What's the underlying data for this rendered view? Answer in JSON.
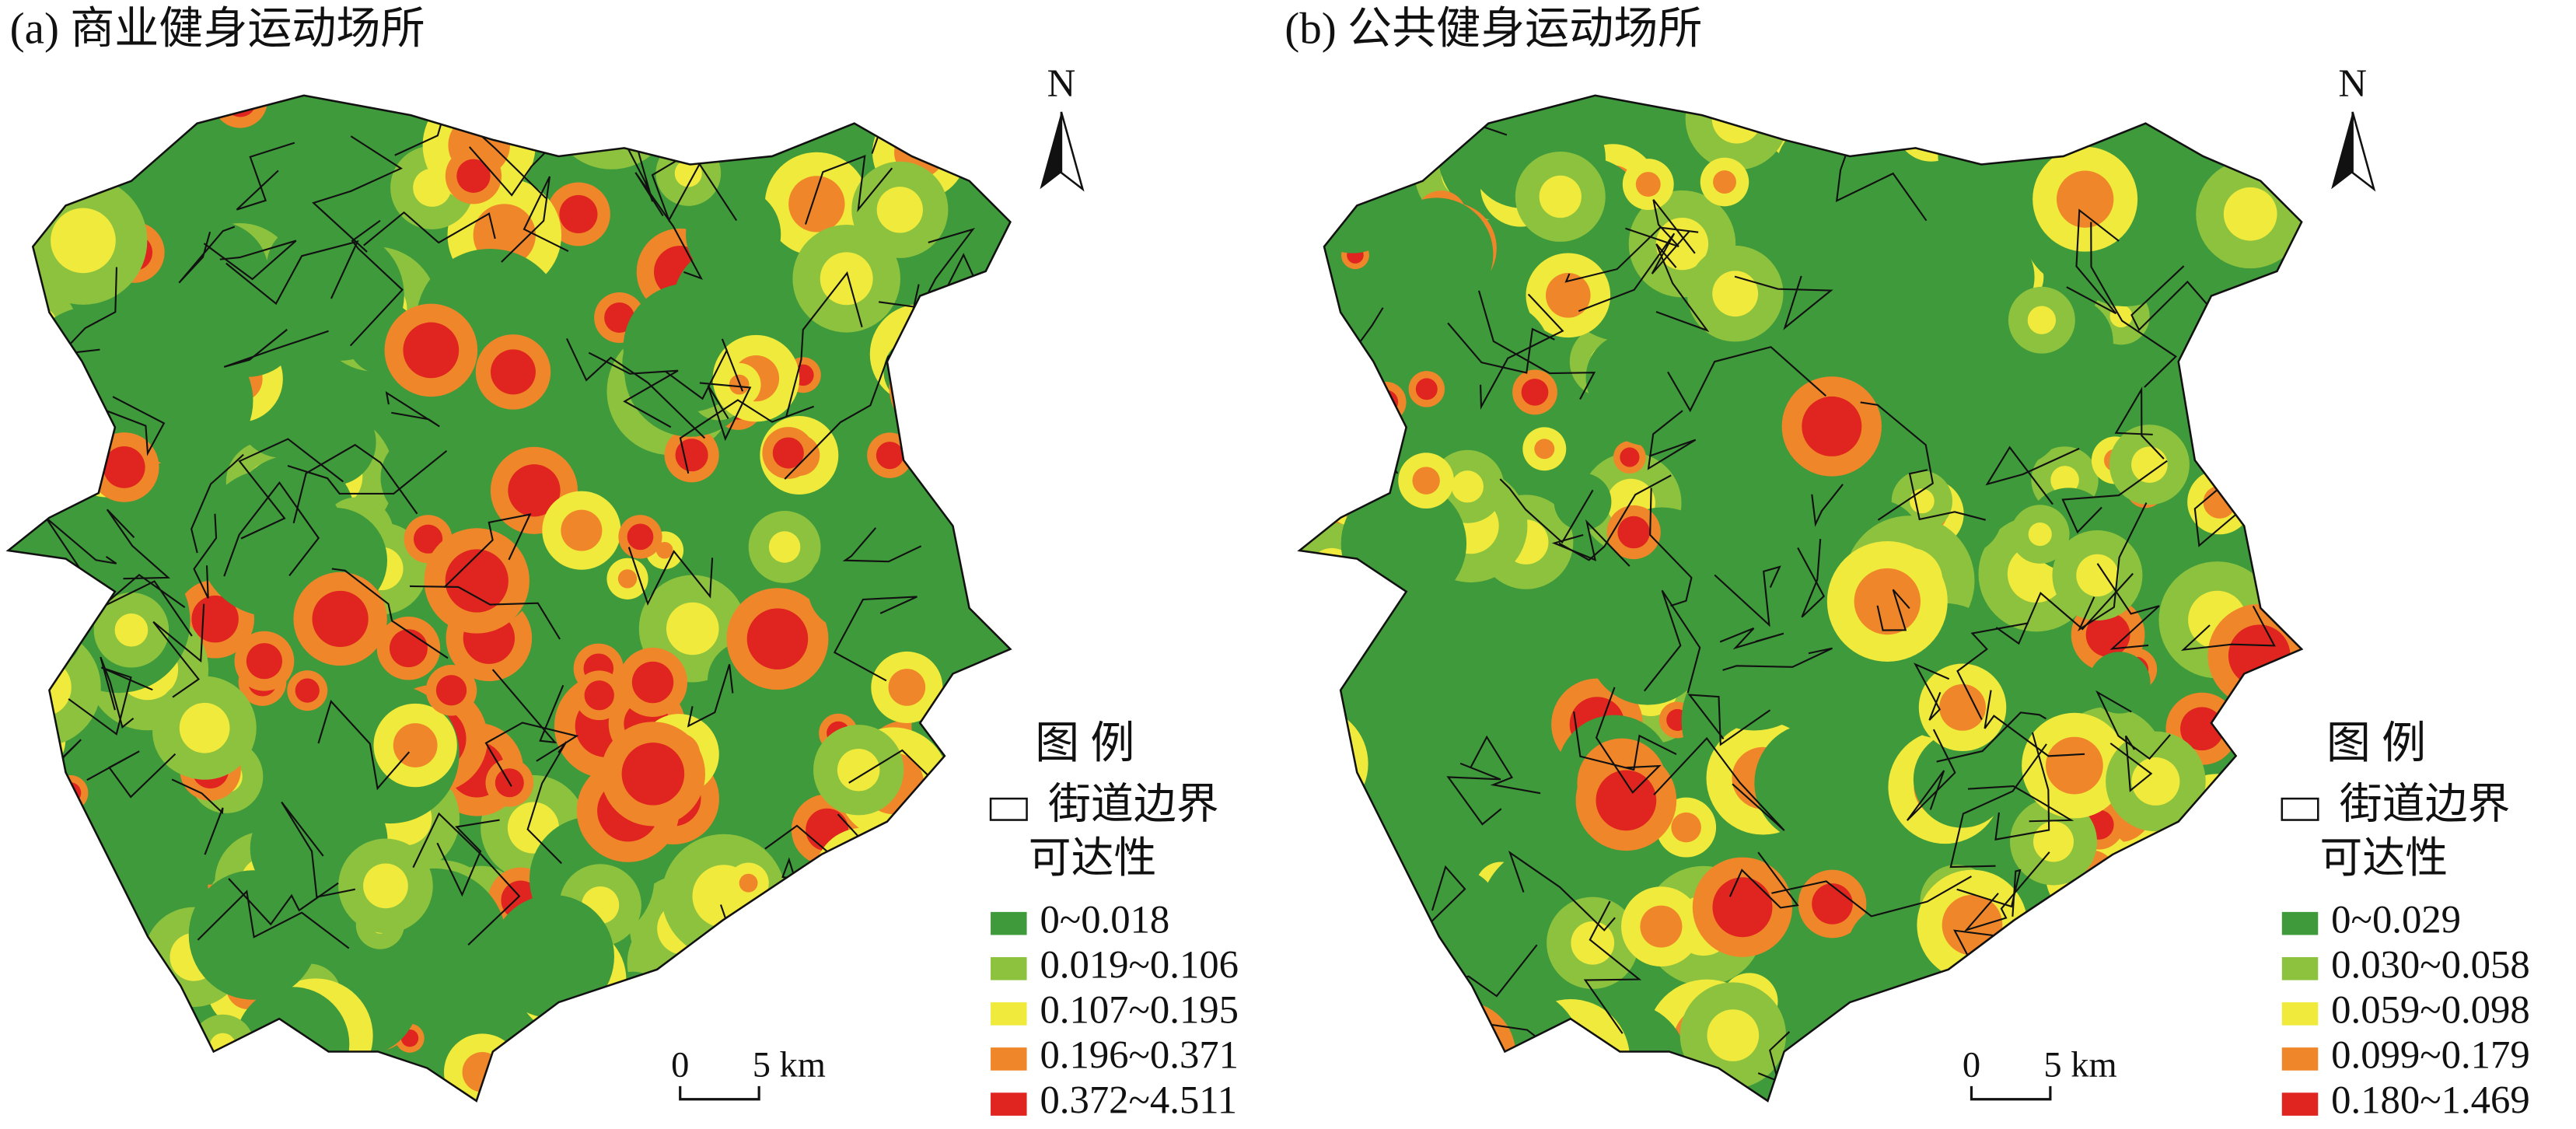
{
  "panels": [
    {
      "title": "(a) 商业健身运动场所",
      "north": "N",
      "scale": {
        "start": "0",
        "end": "5 km"
      },
      "legend": {
        "title": "图 例",
        "boundary": "街道边界",
        "accessibility": "可达性",
        "classes": [
          {
            "label": "0~0.018",
            "color": "#3f9a3b"
          },
          {
            "label": "0.019~0.106",
            "color": "#8dc23f"
          },
          {
            "label": "0.107~0.195",
            "color": "#f0ea3c"
          },
          {
            "label": "0.196~0.371",
            "color": "#f0862a"
          },
          {
            "label": "0.372~4.511",
            "color": "#e0241f"
          }
        ]
      }
    },
    {
      "title": "(b) 公共健身运动场所",
      "north": "N",
      "scale": {
        "start": "0",
        "end": "5 km"
      },
      "legend": {
        "title": "图 例",
        "boundary": "街道边界",
        "accessibility": "可达性",
        "classes": [
          {
            "label": "0~0.029",
            "color": "#3f9a3b"
          },
          {
            "label": "0.030~0.058",
            "color": "#8dc23f"
          },
          {
            "label": "0.059~0.098",
            "color": "#f0ea3c"
          },
          {
            "label": "0.099~0.179",
            "color": "#f0862a"
          },
          {
            "label": "0.180~1.469",
            "color": "#e0241f"
          }
        ]
      }
    }
  ]
}
